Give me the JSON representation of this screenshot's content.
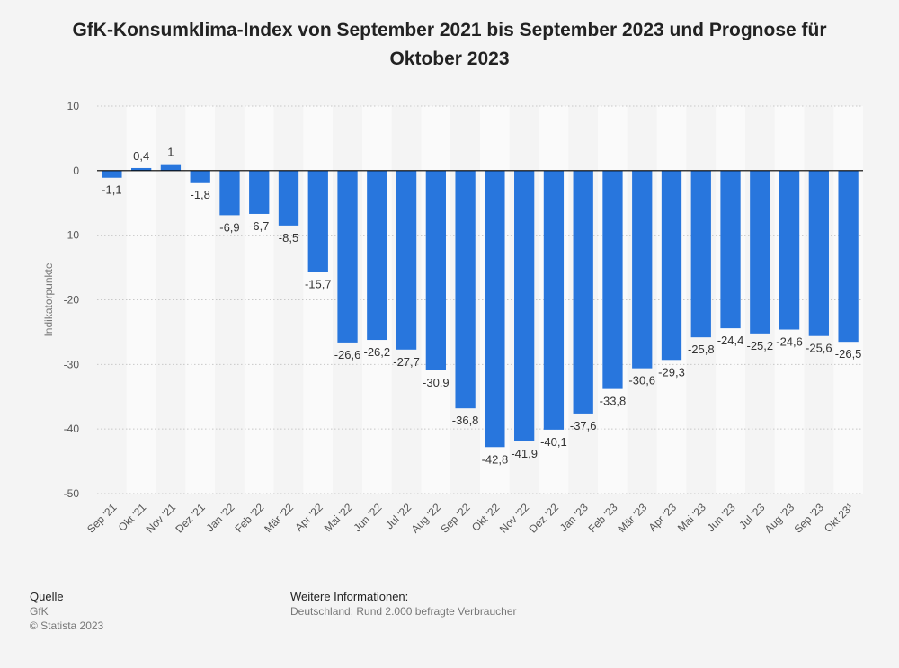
{
  "title": "GfK-Konsumklima-Index von September 2021 bis September 2023 und Prognose für Oktober 2023",
  "chart_data": {
    "type": "bar",
    "title": "GfK-Konsumklima-Index von September 2021 bis September 2023 und Prognose für Oktober 2023",
    "xlabel": "",
    "ylabel": "Indikatorpunkte",
    "ylim": [
      -50,
      10
    ],
    "yticks": [
      10,
      0,
      -10,
      -20,
      -30,
      -40,
      -50
    ],
    "ytick_labels": [
      "10",
      "0",
      "-10",
      "-20",
      "-30",
      "-40",
      "-50"
    ],
    "grid": true,
    "bar_color": "#2876dd",
    "categories": [
      "Sep '21",
      "Okt '21",
      "Nov '21",
      "Dez '21",
      "Jan '22",
      "Feb '22",
      "Mär '22",
      "Apr '22",
      "Mai '22",
      "Jun '22",
      "Jul '22",
      "Aug '22",
      "Sep '22",
      "Okt '22",
      "Nov '22",
      "Dez '22",
      "Jan '23",
      "Feb '23",
      "Mär '23",
      "Apr '23",
      "Mai '23",
      "Jun '23",
      "Jul '23",
      "Aug '23",
      "Sep '23",
      "Okt 23¹"
    ],
    "values": [
      -1.1,
      0.4,
      1,
      -1.8,
      -6.9,
      -6.7,
      -8.5,
      -15.7,
      -26.6,
      -26.2,
      -27.7,
      -30.9,
      -36.8,
      -42.8,
      -41.9,
      -40.1,
      -37.6,
      -33.8,
      -30.6,
      -29.3,
      -25.8,
      -24.4,
      -25.2,
      -24.6,
      -25.6,
      -26.5
    ],
    "value_labels": [
      "-1,1",
      "0,4",
      "1",
      "-1,8",
      "-6,9",
      "-6,7",
      "-8,5",
      "-15,7",
      "-26,6",
      "-26,2",
      "-27,7",
      "-30,9",
      "-36,8",
      "-42,8",
      "-41,9",
      "-40,1",
      "-37,6",
      "-33,8",
      "-30,6",
      "-29,3",
      "-25,8",
      "-24,4",
      "-25,2",
      "-24,6",
      "-25,6",
      "-26,5"
    ]
  },
  "footer": {
    "source_heading": "Quelle",
    "source_name": "GfK",
    "copyright": "© Statista 2023",
    "info_heading": "Weitere Informationen:",
    "info_text": "Deutschland; Rund 2.000 befragte Verbraucher"
  }
}
